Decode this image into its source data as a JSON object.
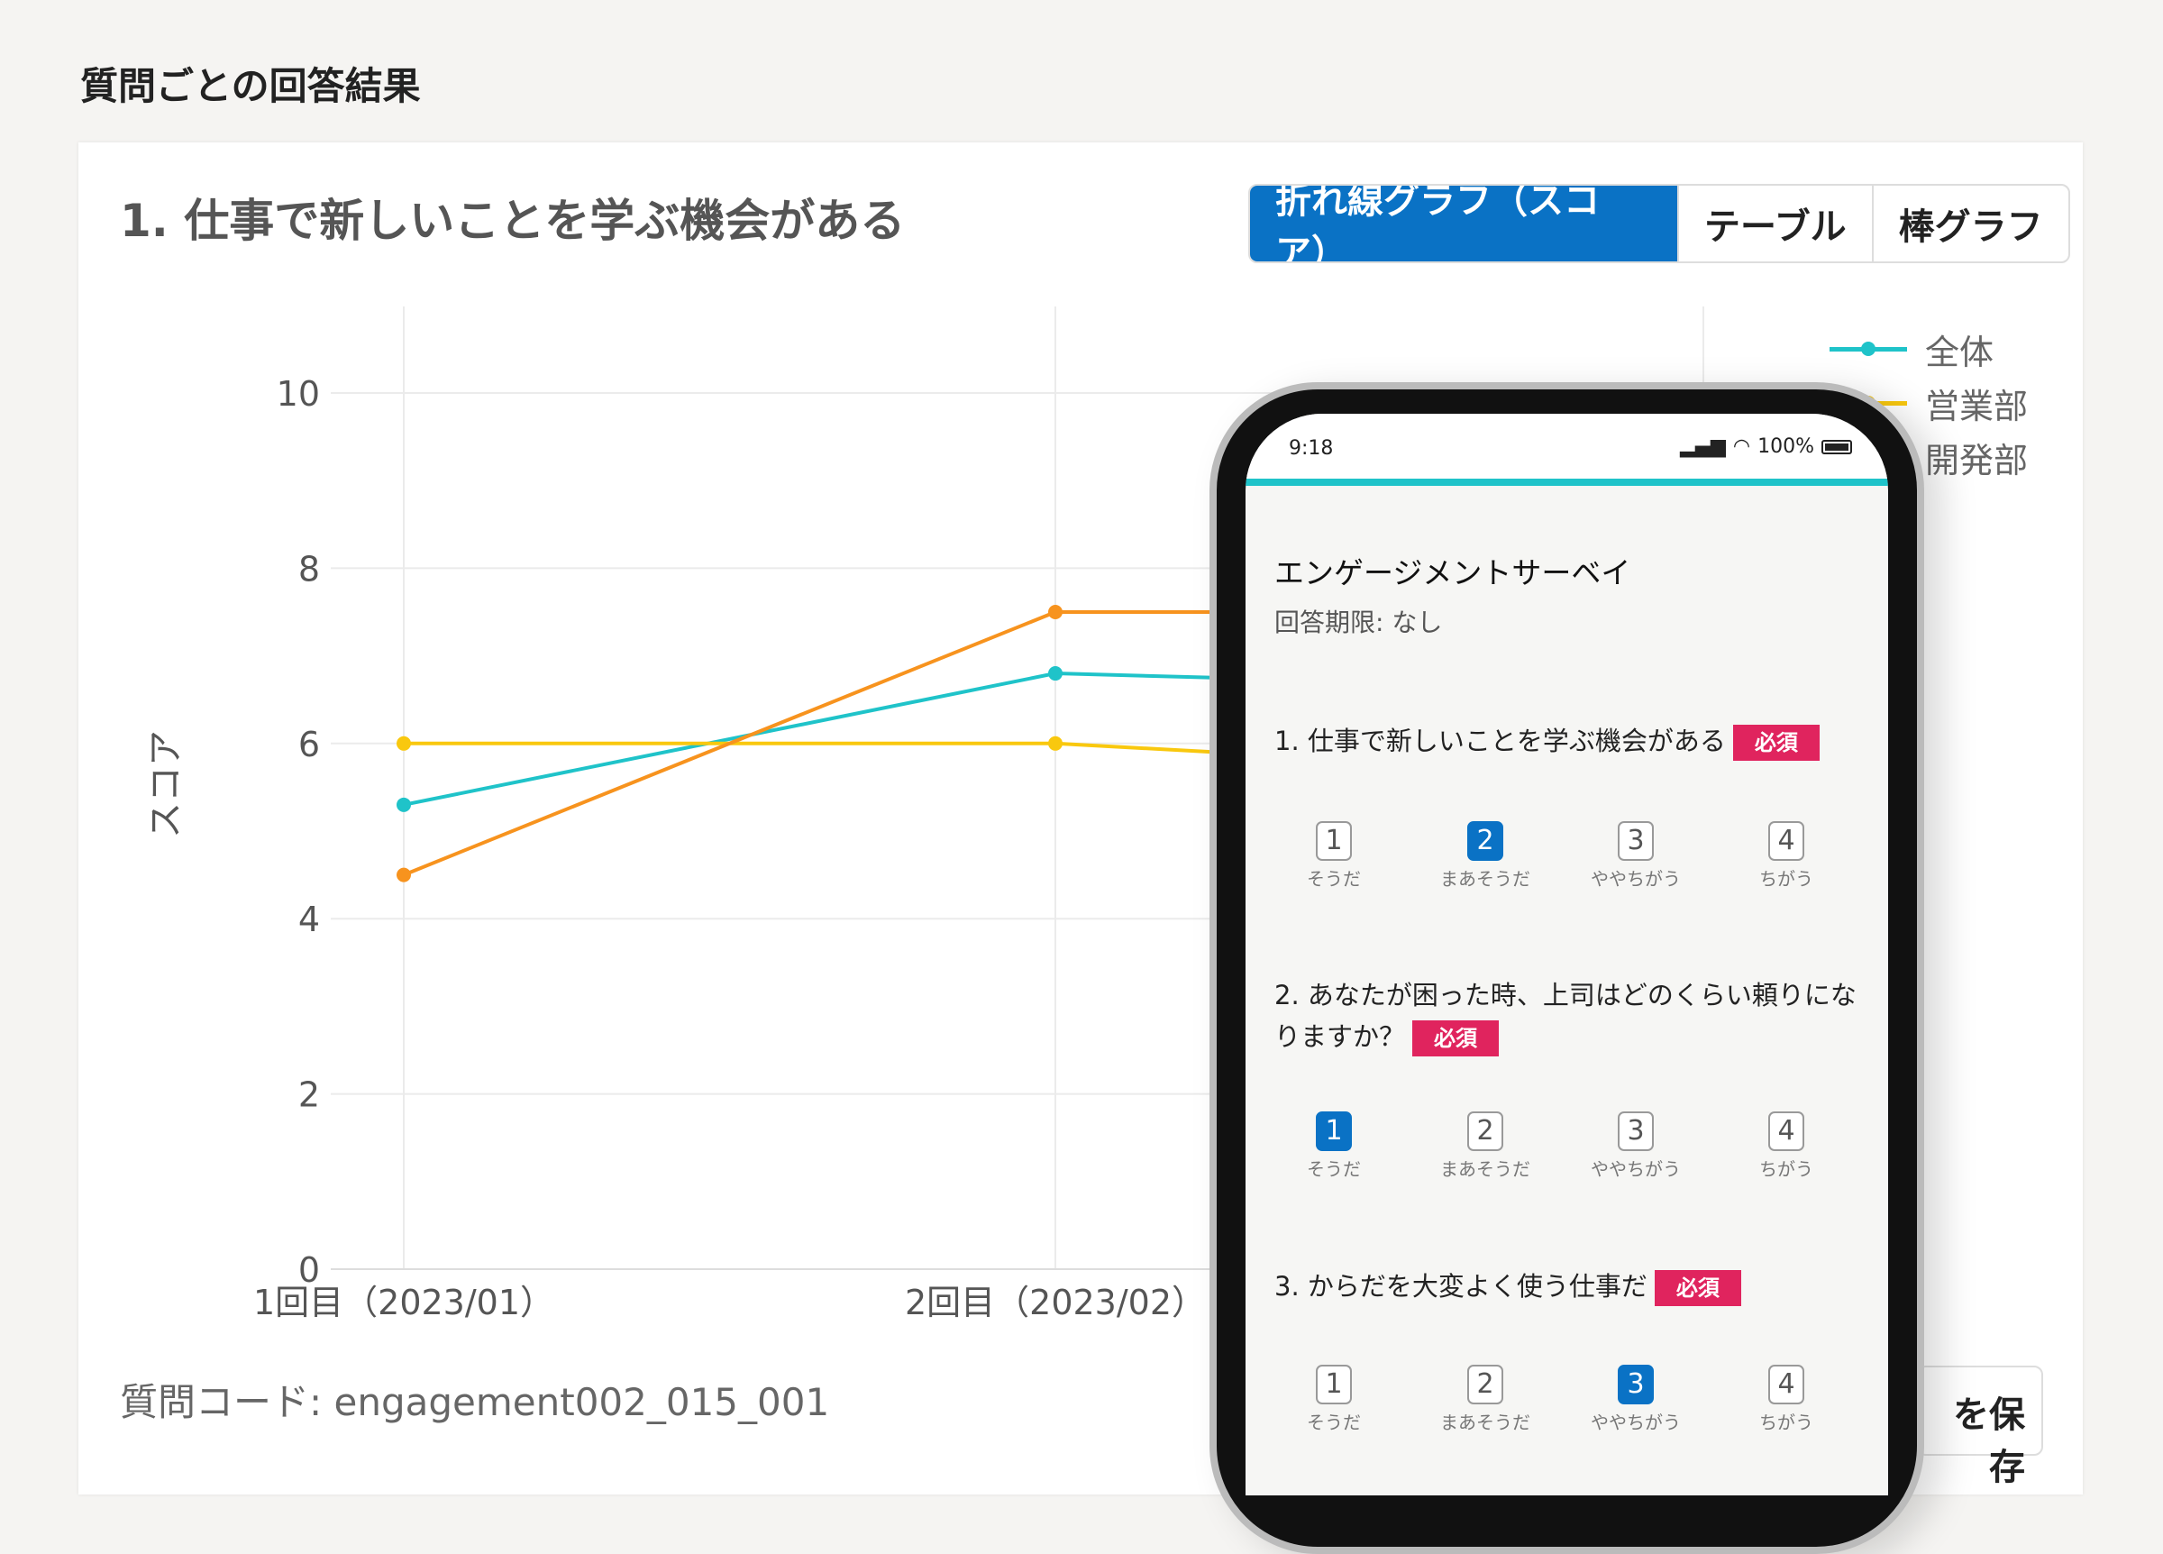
{
  "section_title": "質問ごとの回答結果",
  "card": {
    "title": "1. 仕事で新しいことを学ぶ機会がある",
    "view_toggle": [
      {
        "label": "折れ線グラフ（スコア）",
        "active": true
      },
      {
        "label": "テーブル",
        "active": false
      },
      {
        "label": "棒グラフ",
        "active": false
      }
    ],
    "question_code": "質問コード: engagement002_015_001",
    "save_button_label": "を保存"
  },
  "chart_data": {
    "type": "line",
    "categories": [
      "1回目（2023/01）",
      "2回目（2023/02）"
    ],
    "ylabel": "スコア",
    "ylim": [
      0,
      10
    ],
    "yticks": [
      "0",
      "2",
      "4",
      "6",
      "8",
      "10"
    ],
    "grid": true,
    "legend_placement": "top-right",
    "series": [
      {
        "name": "全体",
        "color": "#1fc3c9",
        "values": [
          5.3,
          6.8
        ]
      },
      {
        "name": "営業部",
        "color": "#f9c80e",
        "values": [
          6.0,
          6.0
        ]
      },
      {
        "name": "開発部",
        "color": "#f7931e",
        "values": [
          4.5,
          7.5
        ]
      }
    ]
  },
  "phone": {
    "time": "9:18",
    "battery": "100%",
    "accent": "#1fc3c9",
    "survey_title": "エンゲージメントサーベイ",
    "deadline": "回答期限: なし",
    "required_badge": "必須",
    "option_labels": [
      "そうだ",
      "まあそうだ",
      "ややちがう",
      "ちがう"
    ],
    "option_numbers": [
      "1",
      "2",
      "3",
      "4"
    ],
    "questions": [
      {
        "text": "1. 仕事で新しいことを学ぶ機会がある",
        "selected": 2
      },
      {
        "text": "2. あなたが困った時、上司はどのくらい頼りになりますか？",
        "selected": 1
      },
      {
        "text": "3. からだを大変よく使う仕事だ",
        "selected": 3
      }
    ]
  }
}
